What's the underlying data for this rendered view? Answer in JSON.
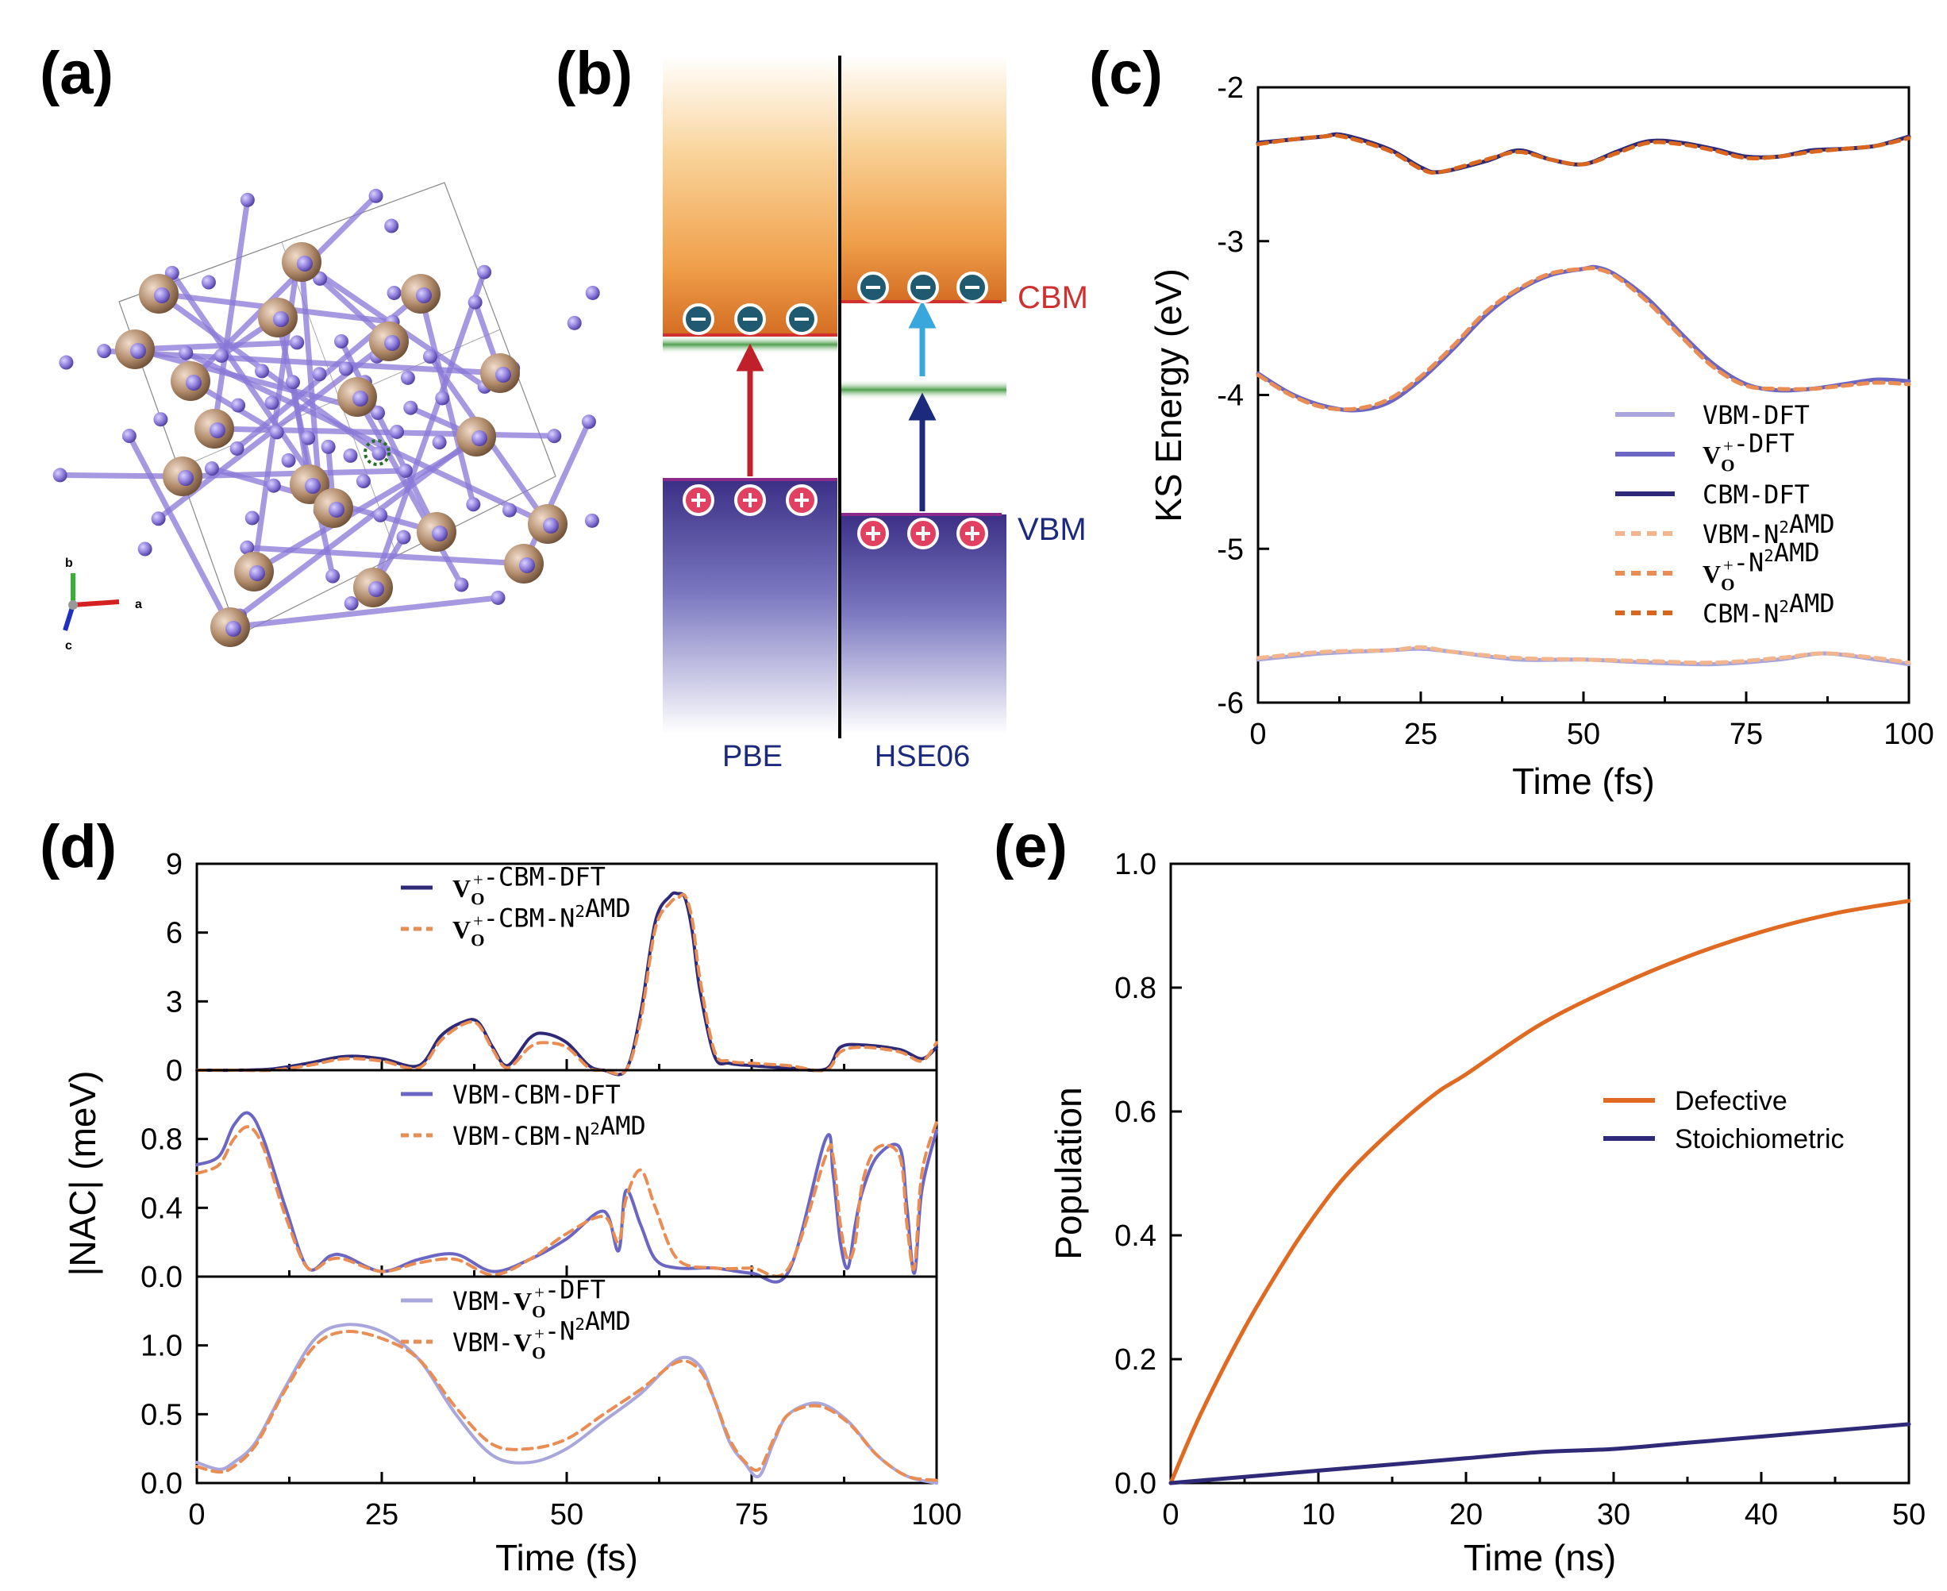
{
  "panels": {
    "a": {
      "label": "(a)",
      "axes": {
        "a": "a",
        "b": "b",
        "c": "c"
      }
    },
    "b": {
      "label": "(b)",
      "cbm": "CBM",
      "vbm": "VBM",
      "left": "PBE",
      "right": "HSE06"
    },
    "c": {
      "label": "(c)"
    },
    "d": {
      "label": "(d)"
    },
    "e": {
      "label": "(e)"
    }
  },
  "colors": {
    "vbm_dft": "#a9a6dc",
    "vo_dft": "#6b66c4",
    "cbm_dft": "#2e2a78",
    "vbm_n2": "#f2b58d",
    "vo_n2": "#e98d55",
    "cbm_n2": "#d9661f",
    "orange": "#e06a22",
    "navy": "#2e2a78",
    "sn": "#b08a6a",
    "o": "#8a78d8"
  },
  "chart_data": [
    {
      "panel": "c",
      "type": "line",
      "xlabel": "Time (fs)",
      "ylabel": "KS Energy (eV)",
      "xlim": [
        0,
        100
      ],
      "ylim": [
        -6,
        -2
      ],
      "xticks": [
        "0",
        "25",
        "50",
        "75",
        "100"
      ],
      "yticks": [
        "-2",
        "-3",
        "-4",
        "-5",
        "-6"
      ],
      "legend": "right",
      "series": [
        {
          "name": "VBM-DFT",
          "key": "vbm_dft",
          "dash": false,
          "x": [
            0,
            10,
            20,
            25,
            30,
            40,
            50,
            60,
            70,
            80,
            87,
            95,
            100
          ],
          "y": [
            -5.72,
            -5.68,
            -5.66,
            -5.65,
            -5.67,
            -5.72,
            -5.72,
            -5.74,
            -5.75,
            -5.72,
            -5.68,
            -5.72,
            -5.75
          ]
        },
        {
          "name": "Vo+-DFT",
          "key": "vo_dft",
          "dash": false,
          "x": [
            0,
            5,
            10,
            15,
            20,
            25,
            30,
            35,
            40,
            45,
            50,
            52,
            55,
            60,
            65,
            70,
            75,
            80,
            85,
            90,
            95,
            100
          ],
          "y": [
            -3.86,
            -3.99,
            -4.07,
            -4.1,
            -4.05,
            -3.9,
            -3.7,
            -3.48,
            -3.32,
            -3.22,
            -3.18,
            -3.17,
            -3.22,
            -3.38,
            -3.6,
            -3.8,
            -3.93,
            -3.97,
            -3.96,
            -3.93,
            -3.9,
            -3.91
          ]
        },
        {
          "name": "CBM-DFT",
          "key": "cbm_dft",
          "dash": false,
          "x": [
            0,
            5,
            10,
            13,
            20,
            25,
            28,
            35,
            40,
            45,
            50,
            55,
            60,
            65,
            70,
            75,
            80,
            85,
            90,
            95,
            100
          ],
          "y": [
            -2.36,
            -2.34,
            -2.32,
            -2.31,
            -2.4,
            -2.52,
            -2.55,
            -2.48,
            -2.41,
            -2.47,
            -2.5,
            -2.42,
            -2.35,
            -2.36,
            -2.4,
            -2.45,
            -2.45,
            -2.41,
            -2.4,
            -2.38,
            -2.32
          ]
        },
        {
          "name": "VBM-N2AMD",
          "key": "vbm_n2",
          "dash": true,
          "x": [
            0,
            10,
            20,
            25,
            30,
            40,
            50,
            60,
            70,
            80,
            87,
            95,
            100
          ],
          "y": [
            -5.71,
            -5.67,
            -5.66,
            -5.64,
            -5.67,
            -5.71,
            -5.72,
            -5.73,
            -5.74,
            -5.71,
            -5.68,
            -5.71,
            -5.74
          ]
        },
        {
          "name": "Vo+-N2AMD",
          "key": "vo_n2",
          "dash": true,
          "x": [
            0,
            5,
            10,
            15,
            20,
            25,
            30,
            35,
            40,
            45,
            50,
            52,
            55,
            60,
            65,
            70,
            75,
            80,
            85,
            90,
            95,
            100
          ],
          "y": [
            -3.87,
            -4.0,
            -4.08,
            -4.09,
            -4.03,
            -3.88,
            -3.68,
            -3.46,
            -3.31,
            -3.21,
            -3.18,
            -3.18,
            -3.23,
            -3.4,
            -3.62,
            -3.82,
            -3.94,
            -3.96,
            -3.96,
            -3.94,
            -3.92,
            -3.93
          ]
        },
        {
          "name": "CBM-N2AMD",
          "key": "cbm_n2",
          "dash": true,
          "x": [
            0,
            5,
            10,
            13,
            20,
            25,
            28,
            35,
            40,
            45,
            50,
            55,
            60,
            65,
            70,
            75,
            80,
            85,
            90,
            95,
            100
          ],
          "y": [
            -2.37,
            -2.34,
            -2.32,
            -2.32,
            -2.41,
            -2.53,
            -2.55,
            -2.47,
            -2.42,
            -2.47,
            -2.5,
            -2.43,
            -2.36,
            -2.37,
            -2.41,
            -2.46,
            -2.45,
            -2.42,
            -2.4,
            -2.38,
            -2.33
          ]
        }
      ]
    },
    {
      "panel": "d",
      "type": "line",
      "xlabel": "Time (fs)",
      "ylabel": "|NAC| (meV)",
      "xlim": [
        0,
        100
      ],
      "xticks": [
        "0",
        "25",
        "50",
        "75",
        "100"
      ],
      "subplots": [
        {
          "ylim": [
            0,
            9
          ],
          "yticks": [
            "0",
            "3",
            "6",
            "9"
          ],
          "series": [
            {
              "name": "Vo+-CBM-DFT",
              "key": "cbm_dft",
              "dash": false,
              "x": [
                0,
                5,
                10,
                15,
                20,
                25,
                30,
                33,
                36,
                38,
                40,
                42,
                45,
                47,
                50,
                53,
                55,
                58,
                60,
                62,
                64,
                65,
                66,
                67,
                68,
                70,
                72,
                75,
                80,
                85,
                87,
                90,
                95,
                98,
                100
              ],
              "y": [
                0,
                0,
                0.05,
                0.3,
                0.6,
                0.5,
                0.2,
                1.5,
                2.1,
                2.1,
                1.0,
                0.2,
                1.4,
                1.6,
                1.2,
                0.2,
                0,
                0,
                2.5,
                6.5,
                7.6,
                7.7,
                7.5,
                6.0,
                3.5,
                0.6,
                0.3,
                0.2,
                0.1,
                0.05,
                1.0,
                1.1,
                0.9,
                0.5,
                1.0
              ]
            },
            {
              "name": "Vo+-CBM-N2AMD",
              "key": "vo_n2",
              "dash": true,
              "x": [
                0,
                5,
                10,
                15,
                20,
                25,
                30,
                33,
                36,
                38,
                40,
                42,
                45,
                47,
                50,
                53,
                55,
                58,
                60,
                62,
                64,
                65,
                66,
                67,
                68,
                70,
                72,
                75,
                80,
                85,
                87,
                90,
                95,
                98,
                100
              ],
              "y": [
                0,
                0,
                0,
                0.2,
                0.5,
                0.4,
                0.1,
                1.3,
                2.0,
                2.0,
                0.9,
                0.1,
                1.0,
                1.2,
                1.0,
                0.1,
                0,
                0,
                2.2,
                6.2,
                7.3,
                7.5,
                7.6,
                6.5,
                4.0,
                0.8,
                0.4,
                0.3,
                0.2,
                0,
                0.8,
                1.0,
                0.8,
                0.4,
                1.2
              ]
            }
          ]
        },
        {
          "ylim": [
            0,
            1.2
          ],
          "yticks": [
            "0.0",
            "0.4",
            "0.8"
          ],
          "series": [
            {
              "name": "VBM-CBM-DFT",
              "key": "vo_dft",
              "dash": false,
              "x": [
                0,
                3,
                5,
                7,
                9,
                12,
                15,
                18,
                20,
                25,
                30,
                35,
                40,
                45,
                50,
                55,
                57,
                58,
                60,
                62,
                65,
                70,
                75,
                80,
                85,
                86,
                87,
                88,
                89,
                90,
                92,
                95,
                96,
                97,
                98,
                100
              ],
              "y": [
                0.65,
                0.7,
                0.88,
                0.95,
                0.8,
                0.4,
                0.05,
                0.12,
                0.12,
                0.03,
                0.1,
                0.13,
                0.03,
                0.1,
                0.22,
                0.38,
                0.15,
                0.5,
                0.3,
                0.1,
                0.05,
                0.05,
                0.02,
                0.03,
                0.8,
                0.6,
                0.2,
                0.05,
                0.3,
                0.5,
                0.7,
                0.75,
                0.4,
                0.02,
                0.5,
                0.85
              ]
            },
            {
              "name": "VBM-CBM-N2AMD",
              "key": "vo_n2",
              "dash": true,
              "x": [
                0,
                3,
                5,
                7,
                9,
                12,
                15,
                18,
                20,
                25,
                30,
                35,
                40,
                45,
                50,
                55,
                57,
                58,
                60,
                62,
                65,
                70,
                75,
                80,
                85,
                86,
                87,
                88,
                89,
                90,
                92,
                95,
                96,
                97,
                98,
                100
              ],
              "y": [
                0.6,
                0.65,
                0.8,
                0.87,
                0.75,
                0.35,
                0.05,
                0.1,
                0.1,
                0.03,
                0.08,
                0.1,
                0.01,
                0.1,
                0.25,
                0.35,
                0.2,
                0.45,
                0.62,
                0.4,
                0.1,
                0.05,
                0.05,
                0.05,
                0.7,
                0.7,
                0.3,
                0.1,
                0.2,
                0.55,
                0.75,
                0.7,
                0.3,
                0.05,
                0.6,
                0.9
              ]
            }
          ]
        },
        {
          "ylim": [
            0,
            1.5
          ],
          "yticks": [
            "0.0",
            "0.5",
            "1.0"
          ],
          "series": [
            {
              "name": "VBM-Vo+-DFT",
              "key": "vbm_dft",
              "dash": false,
              "x": [
                0,
                3,
                5,
                8,
                12,
                16,
                20,
                25,
                30,
                35,
                40,
                45,
                50,
                55,
                60,
                65,
                68,
                70,
                72,
                74,
                76,
                78,
                80,
                84,
                88,
                92,
                96,
                100
              ],
              "y": [
                0.15,
                0.1,
                0.15,
                0.3,
                0.7,
                1.05,
                1.15,
                1.1,
                0.9,
                0.5,
                0.2,
                0.15,
                0.25,
                0.45,
                0.65,
                0.9,
                0.85,
                0.6,
                0.3,
                0.15,
                0.05,
                0.3,
                0.5,
                0.58,
                0.45,
                0.2,
                0.05,
                0.0
              ]
            },
            {
              "name": "VBM-Vo+-N2AMD",
              "key": "vo_n2",
              "dash": true,
              "x": [
                0,
                3,
                5,
                8,
                12,
                16,
                20,
                25,
                30,
                35,
                40,
                45,
                50,
                55,
                60,
                65,
                68,
                70,
                72,
                74,
                76,
                78,
                80,
                84,
                88,
                92,
                96,
                100
              ],
              "y": [
                0.12,
                0.08,
                0.12,
                0.28,
                0.68,
                1.0,
                1.1,
                1.05,
                0.9,
                0.55,
                0.28,
                0.25,
                0.32,
                0.5,
                0.68,
                0.88,
                0.82,
                0.6,
                0.32,
                0.16,
                0.1,
                0.32,
                0.5,
                0.56,
                0.44,
                0.2,
                0.05,
                0.02
              ]
            }
          ]
        }
      ]
    },
    {
      "panel": "e",
      "type": "line",
      "xlabel": "Time (ns)",
      "ylabel": "Population",
      "xlim": [
        0,
        50
      ],
      "ylim": [
        0,
        1.0
      ],
      "xticks": [
        "0",
        "10",
        "20",
        "30",
        "40",
        "50"
      ],
      "yticks": [
        "0.0",
        "0.2",
        "0.4",
        "0.6",
        "0.8",
        "1.0"
      ],
      "legend": "right",
      "series": [
        {
          "name": "Defective",
          "key": "orange",
          "dash": false,
          "x": [
            0,
            2,
            5,
            8,
            10,
            12,
            15,
            18,
            20,
            25,
            30,
            35,
            40,
            45,
            50
          ],
          "y": [
            0,
            0.11,
            0.25,
            0.37,
            0.44,
            0.5,
            0.57,
            0.63,
            0.66,
            0.74,
            0.8,
            0.85,
            0.89,
            0.92,
            0.94
          ]
        },
        {
          "name": "Stoichiometric",
          "key": "navy",
          "dash": false,
          "x": [
            0,
            5,
            10,
            15,
            20,
            25,
            30,
            35,
            40,
            45,
            50
          ],
          "y": [
            0,
            0.01,
            0.02,
            0.03,
            0.04,
            0.05,
            0.055,
            0.065,
            0.075,
            0.085,
            0.095
          ]
        }
      ]
    }
  ]
}
